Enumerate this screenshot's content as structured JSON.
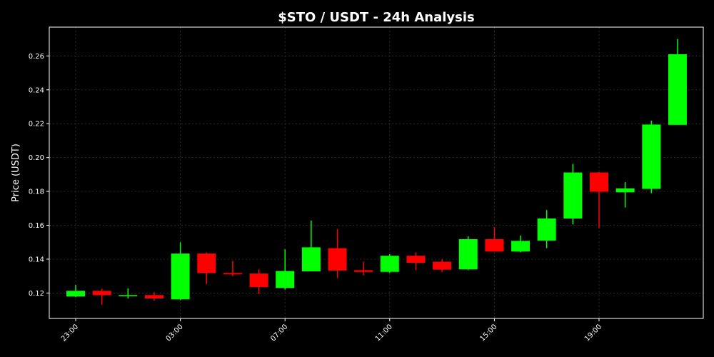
{
  "chart_data": {
    "type": "candlestick",
    "title": "$STO / USDT - 24h Analysis",
    "ylabel": "Price (USDT)",
    "xlabel": "",
    "ylim": [
      0.105,
      0.277
    ],
    "y_ticks": [
      "0.12",
      "0.14",
      "0.16",
      "0.18",
      "0.20",
      "0.22",
      "0.24",
      "0.26"
    ],
    "x_ticks": [
      {
        "hour": 0,
        "label": "23:00"
      },
      {
        "hour": 4,
        "label": "03:00"
      },
      {
        "hour": 8,
        "label": "07:00"
      },
      {
        "hour": 12,
        "label": "11:00"
      },
      {
        "hour": 16,
        "label": "15:00"
      },
      {
        "hour": 20,
        "label": "19:00"
      }
    ],
    "grid": true,
    "colors": {
      "background": "#000000",
      "up": "#00ff00",
      "down": "#ff0000",
      "grid": "#333333",
      "axis": "#ffffff",
      "text": "#ffffff"
    },
    "candles": [
      {
        "hour": 0,
        "open": 0.118,
        "high": 0.1248,
        "low": 0.1175,
        "close": 0.1213
      },
      {
        "hour": 1,
        "open": 0.1213,
        "high": 0.1225,
        "low": 0.113,
        "close": 0.1188
      },
      {
        "hour": 2,
        "open": 0.1185,
        "high": 0.1228,
        "low": 0.1168,
        "close": 0.1188
      },
      {
        "hour": 3,
        "open": 0.1188,
        "high": 0.1205,
        "low": 0.1155,
        "close": 0.1168
      },
      {
        "hour": 4,
        "open": 0.1163,
        "high": 0.15,
        "low": 0.1158,
        "close": 0.1433
      },
      {
        "hour": 5,
        "open": 0.1433,
        "high": 0.144,
        "low": 0.1253,
        "close": 0.1318
      },
      {
        "hour": 6,
        "open": 0.1318,
        "high": 0.139,
        "low": 0.13,
        "close": 0.131
      },
      {
        "hour": 7,
        "open": 0.1315,
        "high": 0.134,
        "low": 0.1193,
        "close": 0.1235
      },
      {
        "hour": 8,
        "open": 0.123,
        "high": 0.1458,
        "low": 0.122,
        "close": 0.133
      },
      {
        "hour": 9,
        "open": 0.1328,
        "high": 0.1628,
        "low": 0.1328,
        "close": 0.147
      },
      {
        "hour": 10,
        "open": 0.1465,
        "high": 0.1578,
        "low": 0.1288,
        "close": 0.1333
      },
      {
        "hour": 11,
        "open": 0.1335,
        "high": 0.1385,
        "low": 0.1305,
        "close": 0.1325
      },
      {
        "hour": 12,
        "open": 0.1325,
        "high": 0.143,
        "low": 0.1318,
        "close": 0.142
      },
      {
        "hour": 13,
        "open": 0.142,
        "high": 0.144,
        "low": 0.1335,
        "close": 0.1378
      },
      {
        "hour": 14,
        "open": 0.1385,
        "high": 0.14,
        "low": 0.1325,
        "close": 0.1338
      },
      {
        "hour": 15,
        "open": 0.134,
        "high": 0.1535,
        "low": 0.1335,
        "close": 0.1518
      },
      {
        "hour": 16,
        "open": 0.1518,
        "high": 0.159,
        "low": 0.1448,
        "close": 0.1445
      },
      {
        "hour": 17,
        "open": 0.1445,
        "high": 0.154,
        "low": 0.144,
        "close": 0.1508
      },
      {
        "hour": 18,
        "open": 0.151,
        "high": 0.169,
        "low": 0.1465,
        "close": 0.164
      },
      {
        "hour": 19,
        "open": 0.164,
        "high": 0.1962,
        "low": 0.1605,
        "close": 0.1912
      },
      {
        "hour": 20,
        "open": 0.1912,
        "high": 0.1915,
        "low": 0.1583,
        "close": 0.1798
      },
      {
        "hour": 21,
        "open": 0.1795,
        "high": 0.1855,
        "low": 0.1705,
        "close": 0.1818
      },
      {
        "hour": 22,
        "open": 0.1815,
        "high": 0.2218,
        "low": 0.179,
        "close": 0.2195
      },
      {
        "hour": 23,
        "open": 0.2193,
        "high": 0.27,
        "low": 0.2193,
        "close": 0.261
      }
    ]
  }
}
